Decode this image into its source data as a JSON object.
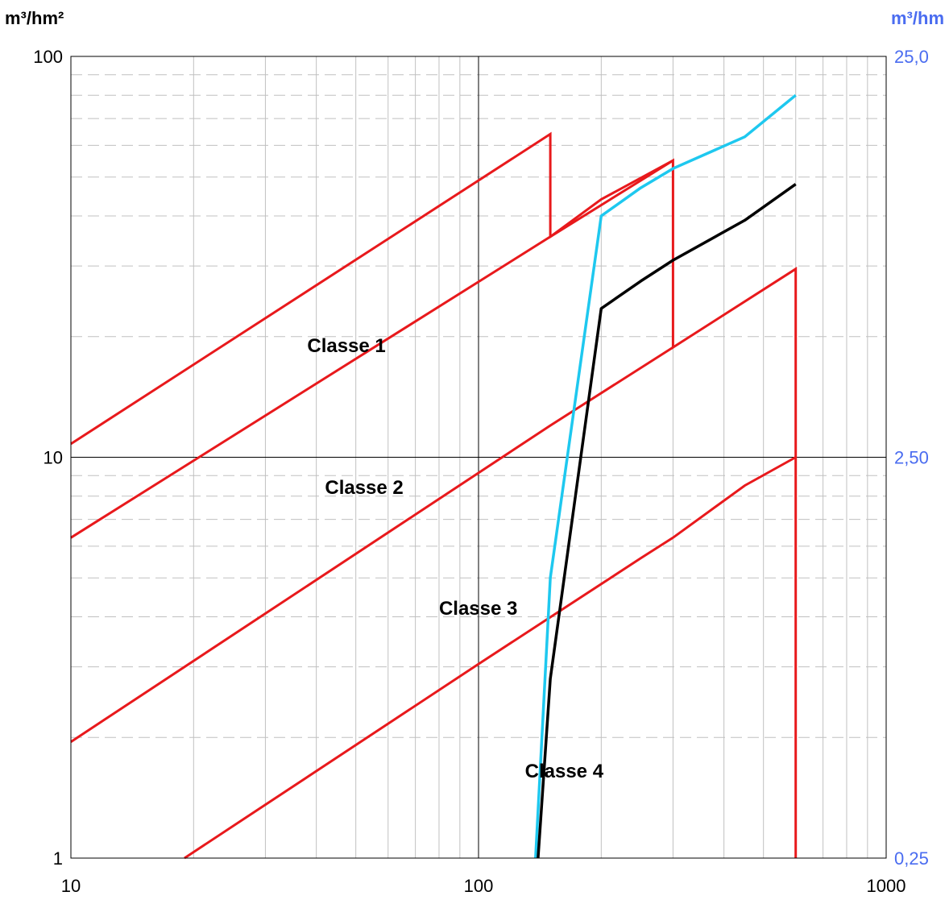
{
  "chart_data": {
    "type": "line",
    "scale": "log-log",
    "grid": true,
    "legend": "none",
    "y_left_unit": "m³/hm²",
    "y_right_unit": "m³/hm",
    "xlim": [
      10,
      1000
    ],
    "ylim": [
      1,
      100
    ],
    "y_right_lim": [
      0.25,
      25.0
    ],
    "x_ticks": [
      "10",
      "100",
      "1000"
    ],
    "y_left_ticks": [
      "1",
      "10",
      "100"
    ],
    "y_right_ticks": [
      "0,25",
      "2,50",
      "25,0"
    ],
    "colors": {
      "class_boundary": "#e8191c",
      "cyan_series": "#1ec8ef",
      "black_series": "#000000",
      "right_axis": "#4a6cf0",
      "grid_major": "#000000",
      "grid_minor": "#c0c0c0"
    },
    "class_labels": [
      {
        "text": "Classe 1",
        "x": 38,
        "y": 19
      },
      {
        "text": "Classe 2",
        "x": 42,
        "y": 8.4
      },
      {
        "text": "Classe 3",
        "x": 80,
        "y": 4.2
      },
      {
        "text": "Classe 4",
        "x": 130,
        "y": 1.65
      }
    ],
    "boundaries": [
      {
        "name": "",
        "points": [
          [
            10,
            10.8
          ],
          [
            150,
            64
          ],
          [
            150,
            35.5
          ],
          [
            300,
            55
          ],
          [
            300,
            18.8
          ],
          [
            600,
            29.5
          ],
          [
            600,
            1
          ]
        ]
      },
      {
        "name": "",
        "points": [
          [
            10,
            6.3
          ],
          [
            150,
            35.5
          ],
          [
            200,
            44
          ],
          [
            300,
            55
          ]
        ]
      },
      {
        "name": "",
        "points": [
          [
            10,
            1.95
          ],
          [
            150,
            12
          ],
          [
            300,
            18.8
          ]
        ]
      },
      {
        "name": "",
        "points": [
          [
            19,
            1.0
          ],
          [
            100,
            3.05
          ],
          [
            250,
            5.6
          ],
          [
            300,
            6.3
          ],
          [
            450,
            8.5
          ],
          [
            600,
            10
          ]
        ]
      }
    ],
    "series": [
      {
        "name": "",
        "color": "#1ec8ef",
        "points": [
          [
            138,
            1.0
          ],
          [
            150,
            5.0
          ],
          [
            200,
            40
          ],
          [
            250,
            47
          ],
          [
            300,
            52.5
          ],
          [
            450,
            63
          ],
          [
            600,
            80
          ]
        ]
      },
      {
        "name": "",
        "color": "#000000",
        "points": [
          [
            140,
            1.0
          ],
          [
            150,
            2.8
          ],
          [
            200,
            23.5
          ],
          [
            250,
            27.5
          ],
          [
            300,
            31
          ],
          [
            450,
            39
          ],
          [
            600,
            48
          ]
        ]
      }
    ]
  }
}
